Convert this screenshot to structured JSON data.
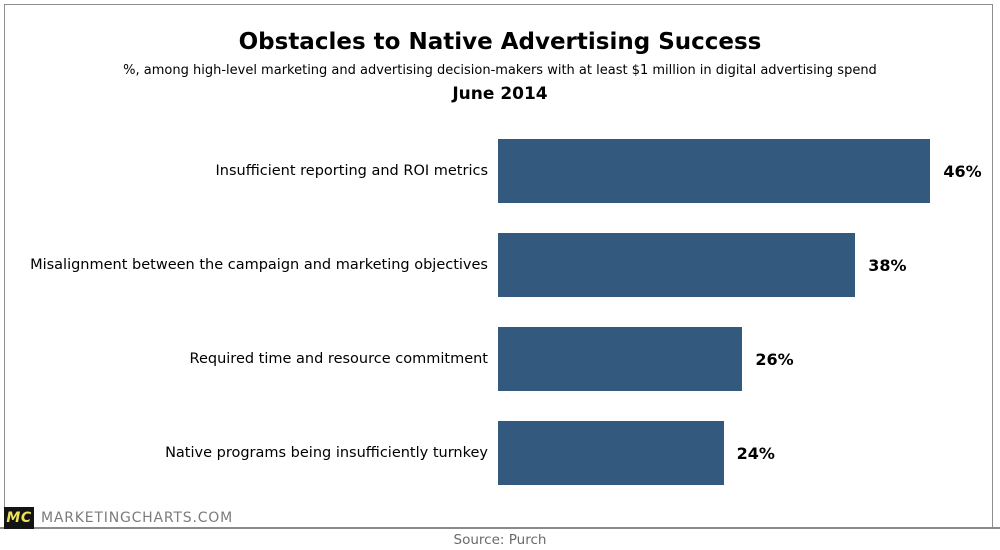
{
  "header": {
    "title": "Obstacles to Native Advertising Success",
    "subtitle": "%, among high-level marketing and advertising decision-makers with at least $1 million in digital advertising spend",
    "period": "June 2014"
  },
  "chart_data": {
    "type": "bar",
    "orientation": "horizontal",
    "title": "Obstacles to Native Advertising Success",
    "subtitle": "%, among high-level marketing and advertising decision-makers with at least $1 million in digital advertising spend",
    "period": "June 2014",
    "categories": [
      "Insufficient reporting and ROI metrics",
      "Misalignment between the campaign and marketing objectives",
      "Required time and resource commitment",
      "Native programs being insufficiently turnkey"
    ],
    "values": [
      46,
      38,
      26,
      24
    ],
    "value_suffix": "%",
    "xlim": [
      0,
      50
    ],
    "grid": false,
    "legend": false,
    "bar_color": "#34597E"
  },
  "footer": {
    "logo_text": "MC",
    "brand": "MARKETINGCHARTS.COM",
    "source": "Source: Purch",
    "logo_bg": "#141414",
    "logo_color": "#EEE15A"
  }
}
